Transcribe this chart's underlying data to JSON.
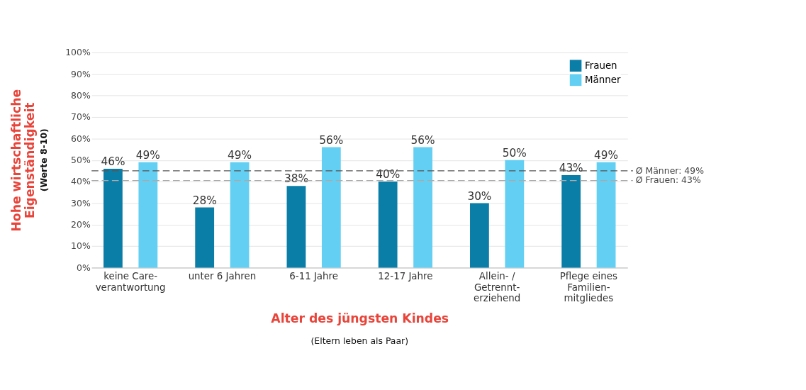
{
  "chart_data": {
    "type": "bar",
    "categories": [
      "keine Care-\nverantwortung",
      "unter 6 Jahren",
      "6-11 Jahre",
      "12-17 Jahre",
      "Allein- /\nGetrennt-\nerziehend",
      "Pflege eines\nFamilien-\nmitgliedes"
    ],
    "series": [
      {
        "name": "Frauen",
        "color": "#0b7ea8",
        "values": [
          46,
          28,
          38,
          40,
          30,
          43
        ],
        "value_labels": [
          "46%",
          "28%",
          "38%",
          "40%",
          "30%",
          "43%"
        ]
      },
      {
        "name": "Männer",
        "color": "#63cff3",
        "values": [
          49,
          49,
          56,
          56,
          50,
          49
        ],
        "value_labels": [
          "49%",
          "49%",
          "56%",
          "56%",
          "50%",
          "49%"
        ]
      }
    ],
    "ylim": [
      0,
      100
    ],
    "yticks": [
      {
        "value": 0,
        "label": "0%"
      },
      {
        "value": 10,
        "label": "10%"
      },
      {
        "value": 20,
        "label": "20%"
      },
      {
        "value": 30,
        "label": "30%"
      },
      {
        "value": 40,
        "label": "40%"
      },
      {
        "value": 50,
        "label": "50%"
      },
      {
        "value": 60,
        "label": "60%"
      },
      {
        "value": 70,
        "label": "70%"
      },
      {
        "value": 80,
        "label": "80%"
      },
      {
        "value": 90,
        "label": "90%"
      },
      {
        "value": 100,
        "label": "100%"
      }
    ],
    "ylabel": "Hohe wirtschaftliche\nEigenständigkeit",
    "xlabel": "Alter des jüngsten Kindes",
    "annotations": [
      "(Werte 8-10)",
      "(Eltern leben als Paar)",
      "Ø Männer: 49%",
      "Ø Frauen: 43%"
    ],
    "ref_lines": [
      {
        "axis": "y",
        "value": 45,
        "color": "#555555",
        "line_style": "dashed"
      },
      {
        "axis": "y",
        "value": 40.5,
        "color": "#aaaaaa",
        "line_style": "dashed"
      }
    ],
    "data_labels": true,
    "grid": "y",
    "legend": "top right"
  }
}
